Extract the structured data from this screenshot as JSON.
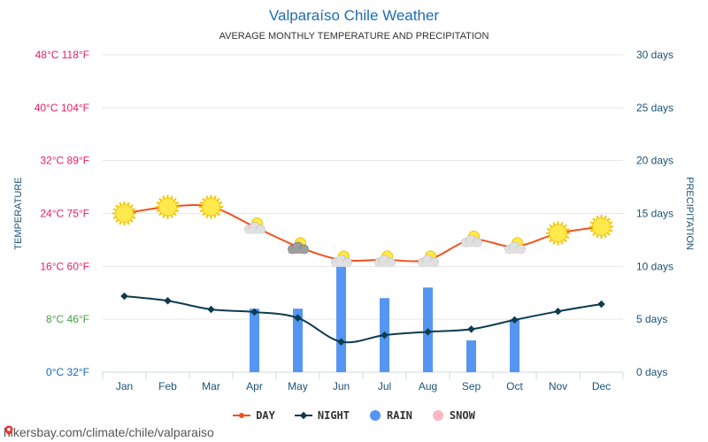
{
  "header": {
    "title": "Valparaíso Chile Weather",
    "subtitle": "AVERAGE MONTHLY TEMPERATURE AND PRECIPITATION"
  },
  "chart_data": {
    "type": "line",
    "title": "Valparaíso Chile Weather",
    "subtitle": "AVERAGE MONTHLY TEMPERATURE AND PRECIPITATION",
    "categories": [
      "Jan",
      "Feb",
      "Mar",
      "Apr",
      "May",
      "Jun",
      "Jul",
      "Aug",
      "Sep",
      "Oct",
      "Nov",
      "Dec"
    ],
    "y_left": {
      "label": "TEMPERATURE",
      "ylim": [
        0,
        48
      ],
      "ticks": [
        {
          "value": 0,
          "label": "0°C 32°F",
          "color": "#1565c0"
        },
        {
          "value": 8,
          "label": "8°C 46°F",
          "color": "#43a047"
        },
        {
          "value": 16,
          "label": "16°C 60°F",
          "color": "#e91e63"
        },
        {
          "value": 24,
          "label": "24°C 75°F",
          "color": "#e91e63"
        },
        {
          "value": 32,
          "label": "32°C 89°F",
          "color": "#e91e63"
        },
        {
          "value": 40,
          "label": "40°C 104°F",
          "color": "#e91e63"
        },
        {
          "value": 48,
          "label": "48°C 118°F",
          "color": "#e91e63"
        }
      ]
    },
    "y_right": {
      "label": "PRECIPITATION",
      "ylim": [
        0,
        30
      ],
      "ticks": [
        {
          "value": 0,
          "label": "0 days"
        },
        {
          "value": 5,
          "label": "5 days"
        },
        {
          "value": 10,
          "label": "10 days"
        },
        {
          "value": 15,
          "label": "15 days"
        },
        {
          "value": 20,
          "label": "20 days"
        },
        {
          "value": 25,
          "label": "25 days"
        },
        {
          "value": 30,
          "label": "30 days"
        }
      ]
    },
    "series": [
      {
        "name": "DAY",
        "axis": "left",
        "color": "#f4511e",
        "values": [
          24,
          25,
          25,
          22,
          19,
          17,
          17,
          17,
          20,
          19,
          21,
          22
        ],
        "icons": [
          "sun",
          "sun",
          "sun",
          "sun-cloud",
          "sun-cloud-dark",
          "sun-cloud",
          "sun-cloud",
          "sun-cloud",
          "sun-cloud",
          "sun-cloud",
          "sun",
          "sun"
        ]
      },
      {
        "name": "NIGHT",
        "axis": "left",
        "color": "#0d3b4f",
        "values": [
          11.5,
          10.8,
          9.5,
          9.1,
          8.2,
          4.6,
          5.6,
          6.1,
          6.5,
          7.9,
          9.2,
          10.3
        ]
      },
      {
        "name": "RAIN",
        "axis": "right",
        "type": "bar",
        "color": "#5596f3",
        "values": [
          0,
          0,
          0,
          6,
          6,
          10,
          7,
          8,
          3,
          5,
          0,
          0
        ]
      },
      {
        "name": "SNOW",
        "axis": "right",
        "type": "bar",
        "color": "#ffb7c5",
        "values": [
          0,
          0,
          0,
          0,
          0,
          0,
          0,
          0,
          0,
          0,
          0,
          0
        ]
      }
    ],
    "legend": {
      "position": "bottom"
    },
    "grid": true
  },
  "legend": {
    "day": "DAY",
    "night": "NIGHT",
    "rain": "RAIN",
    "snow": "SNOW"
  },
  "footer": {
    "url": "hikersbay.com/climate/chile/valparaiso"
  }
}
